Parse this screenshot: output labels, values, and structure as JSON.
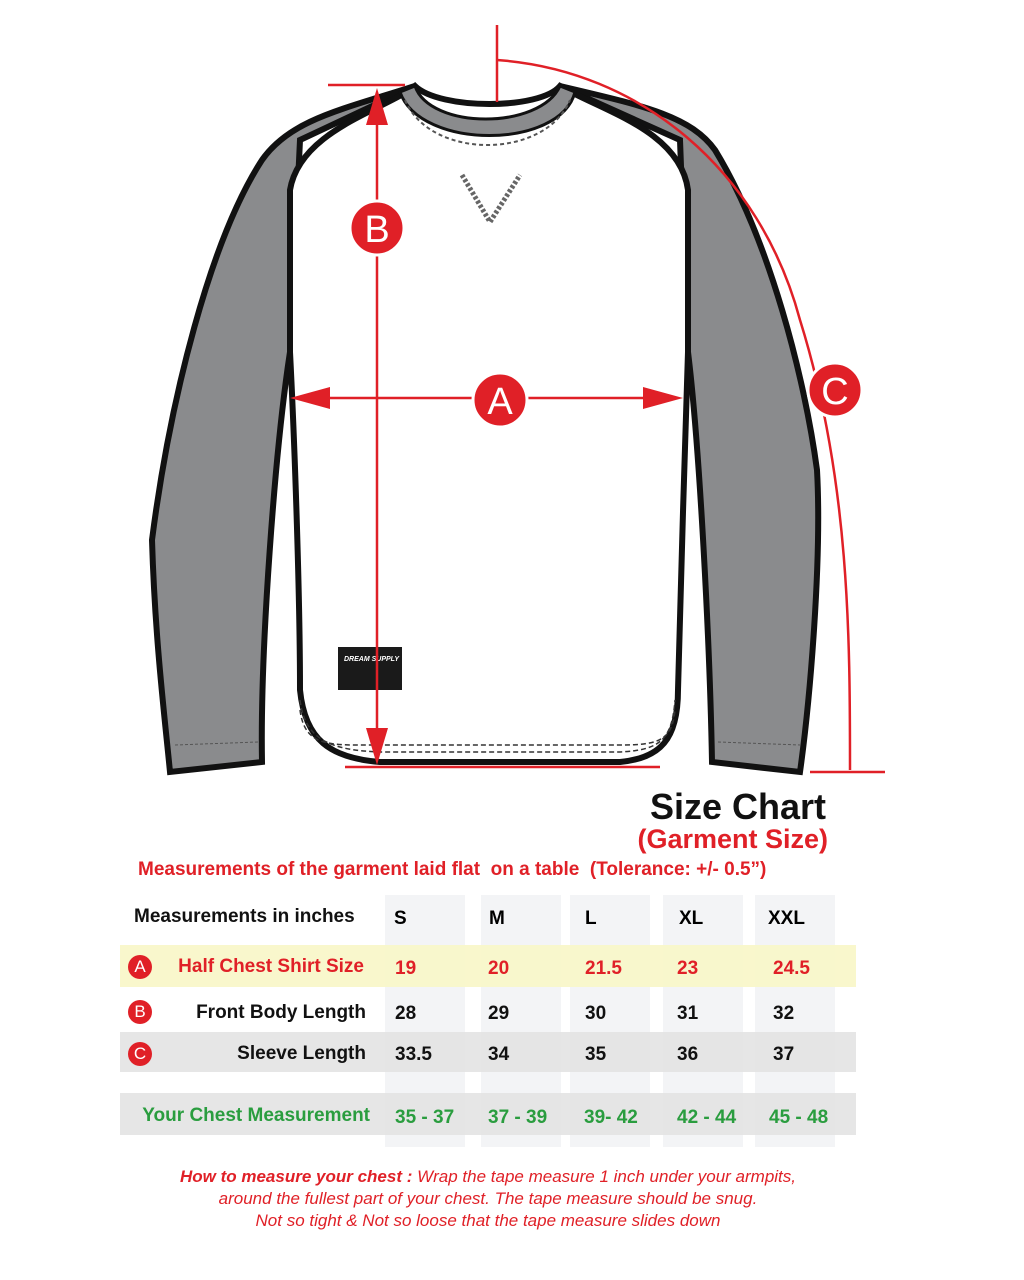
{
  "diagram": {
    "markers": {
      "a": "A",
      "b": "B",
      "c": "C"
    },
    "label_logo": "DREAM SUPPLY",
    "colors": {
      "sleeve": "#8a8b8d",
      "accent": "#e02027",
      "green": "#2a9d3f",
      "highlight": "#f8f6c8"
    }
  },
  "header": {
    "title": "Size Chart",
    "subtitle": "(Garment Size)",
    "measurement_note": "Measurements of the garment laid flat  on a table  (Tolerance: +/- 0.5”)"
  },
  "table": {
    "header_label": "Measurements in inches",
    "sizes": [
      "S",
      "M",
      "L",
      "XL",
      "XXL"
    ],
    "rows": [
      {
        "marker": "A",
        "label": "Half Chest Shirt Size",
        "values": [
          "19",
          "20",
          "21.5",
          "23",
          "24.5"
        ]
      },
      {
        "marker": "B",
        "label": "Front Body Length",
        "values": [
          "28",
          "29",
          "30",
          "31",
          "32"
        ]
      },
      {
        "marker": "C",
        "label": "Sleeve Length",
        "values": [
          "33.5",
          "34",
          "35",
          "36",
          "37"
        ]
      }
    ],
    "chest_row": {
      "label": "Your Chest Measurement",
      "values": [
        "35 - 37",
        "37 - 39",
        "39- 42",
        "42 - 44",
        "45 - 48"
      ]
    }
  },
  "how_to": {
    "lead": "How to measure your chest :",
    "line1": " Wrap the tape measure 1 inch under your armpits,",
    "line2": "around the fullest part of your chest. The tape measure should be snug.",
    "line3": "Not so tight & Not so loose that the tape measure slides down"
  }
}
